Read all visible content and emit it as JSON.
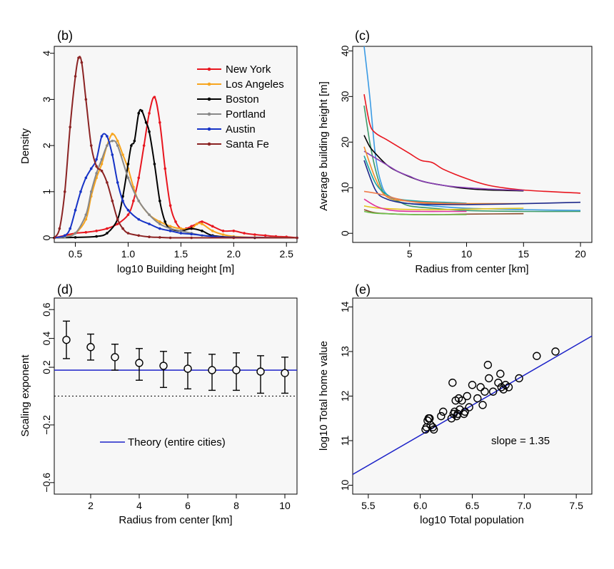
{
  "chart_data": [
    {
      "id": "b",
      "type": "line",
      "panel_label": "(b)",
      "xlabel": "log10 Building height [m]",
      "ylabel": "Density",
      "xlim": [
        0.3,
        2.6
      ],
      "ylim": [
        -0.1,
        4.15
      ],
      "xticks": [
        0.5,
        1.0,
        1.5,
        2.0,
        2.5
      ],
      "xtick_labels": [
        "0.5",
        "1.0",
        "1.5",
        "2.0",
        "2.5"
      ],
      "yticks": [
        0,
        1,
        2,
        3,
        4
      ],
      "ytick_labels": [
        "0",
        "1",
        "2",
        "3",
        "4"
      ],
      "legend_position": "top-right",
      "series": [
        {
          "name": "New York",
          "color": "#e8161f",
          "x": [
            0.3,
            0.4,
            0.5,
            0.6,
            0.7,
            0.8,
            0.9,
            1.0,
            1.05,
            1.1,
            1.15,
            1.2,
            1.25,
            1.3,
            1.35,
            1.4,
            1.45,
            1.5,
            1.55,
            1.6,
            1.65,
            1.7,
            1.8,
            1.9,
            2.0,
            2.1,
            2.2,
            2.3,
            2.4,
            2.5,
            2.6
          ],
          "y": [
            0,
            0.05,
            0.1,
            0.12,
            0.15,
            0.2,
            0.3,
            0.5,
            0.8,
            1.3,
            2.0,
            2.7,
            3.05,
            2.5,
            1.5,
            0.7,
            0.35,
            0.2,
            0.2,
            0.25,
            0.3,
            0.35,
            0.25,
            0.15,
            0.15,
            0.1,
            0.07,
            0.05,
            0.03,
            0.02,
            0
          ]
        },
        {
          "name": "Los Angeles",
          "color": "#f7a51e",
          "x": [
            0.3,
            0.4,
            0.5,
            0.6,
            0.65,
            0.7,
            0.75,
            0.8,
            0.85,
            0.9,
            0.95,
            1.0,
            1.05,
            1.1,
            1.2,
            1.3,
            1.4,
            1.5,
            1.6,
            1.65,
            1.7,
            1.8,
            1.9,
            2.0,
            2.2,
            2.6
          ],
          "y": [
            0,
            0.02,
            0.1,
            0.4,
            0.9,
            1.3,
            1.6,
            2.0,
            2.25,
            2.1,
            1.8,
            1.5,
            1.1,
            0.8,
            0.5,
            0.35,
            0.25,
            0.2,
            0.2,
            0.3,
            0.3,
            0.15,
            0.07,
            0.03,
            0.01,
            0
          ]
        },
        {
          "name": "Boston",
          "color": "#000000",
          "x": [
            0.3,
            0.5,
            0.7,
            0.8,
            0.9,
            0.95,
            1.0,
            1.03,
            1.06,
            1.1,
            1.13,
            1.17,
            1.2,
            1.25,
            1.3,
            1.35,
            1.4,
            1.5,
            1.6,
            1.7,
            1.8,
            2.0,
            2.2,
            2.6
          ],
          "y": [
            0,
            0.01,
            0.03,
            0.1,
            0.4,
            0.9,
            1.6,
            2.0,
            2.1,
            2.7,
            2.75,
            2.5,
            2.3,
            1.6,
            0.8,
            0.35,
            0.2,
            0.15,
            0.2,
            0.15,
            0.05,
            0.01,
            0,
            0
          ]
        },
        {
          "name": "Portland",
          "color": "#888888",
          "x": [
            0.3,
            0.4,
            0.5,
            0.6,
            0.65,
            0.7,
            0.75,
            0.8,
            0.85,
            0.9,
            1.0,
            1.1,
            1.2,
            1.3,
            1.4,
            1.5,
            1.6,
            1.7,
            1.8,
            2.0,
            2.6
          ],
          "y": [
            0,
            0.02,
            0.1,
            0.5,
            1.0,
            1.4,
            1.7,
            2.0,
            2.1,
            2.0,
            1.3,
            0.8,
            0.5,
            0.3,
            0.2,
            0.15,
            0.1,
            0.05,
            0.03,
            0.01,
            0
          ]
        },
        {
          "name": "Austin",
          "color": "#1633c6",
          "x": [
            0.3,
            0.4,
            0.45,
            0.5,
            0.55,
            0.6,
            0.65,
            0.7,
            0.75,
            0.8,
            0.85,
            0.9,
            0.95,
            1.0,
            1.1,
            1.2,
            1.3,
            1.4,
            1.5,
            1.6,
            1.8,
            2.0,
            2.6
          ],
          "y": [
            0,
            0.05,
            0.2,
            0.6,
            1.0,
            1.3,
            1.5,
            1.7,
            2.2,
            2.2,
            1.8,
            1.2,
            0.8,
            0.6,
            0.4,
            0.3,
            0.2,
            0.15,
            0.1,
            0.08,
            0.03,
            0.01,
            0
          ]
        },
        {
          "name": "Santa Fe",
          "color": "#8b2323",
          "x": [
            0.3,
            0.35,
            0.4,
            0.45,
            0.5,
            0.53,
            0.56,
            0.6,
            0.65,
            0.7,
            0.75,
            0.8,
            0.85,
            0.9,
            0.95,
            1.0,
            1.1,
            1.2,
            1.3,
            1.4,
            1.6,
            2.0,
            2.6
          ],
          "y": [
            0,
            0.2,
            1.0,
            2.4,
            3.5,
            3.9,
            3.8,
            3.0,
            2.0,
            1.55,
            1.45,
            1.2,
            0.8,
            0.4,
            0.2,
            0.1,
            0.05,
            0.02,
            0.01,
            0,
            0,
            0,
            0
          ]
        }
      ]
    },
    {
      "id": "c",
      "type": "line",
      "panel_label": "(c)",
      "xlabel": "Radius from center [km]",
      "ylabel": "Average building height [m]",
      "xlim": [
        0,
        21
      ],
      "ylim": [
        -2,
        41
      ],
      "xticks": [
        5,
        10,
        15,
        20
      ],
      "xtick_labels": [
        "5",
        "10",
        "15",
        "20"
      ],
      "yticks": [
        0,
        10,
        20,
        30,
        40
      ],
      "ytick_labels": [
        "0",
        "10",
        "20",
        "30",
        "40"
      ],
      "series": [
        {
          "name": "c-light-blue",
          "color": "#3b9be4",
          "x": [
            1,
            1.5,
            2,
            2.5,
            3,
            4,
            5,
            7,
            10,
            15,
            20
          ],
          "y": [
            41,
            30,
            17,
            11,
            8.5,
            7,
            6.5,
            6,
            5.5,
            5.2,
            5
          ]
        },
        {
          "name": "c-red",
          "color": "#e8161f",
          "x": [
            1,
            1.5,
            2,
            3,
            4,
            5,
            6,
            7,
            8,
            10,
            12,
            15,
            20
          ],
          "y": [
            30.5,
            24,
            22,
            20.5,
            19,
            17.5,
            16,
            15.5,
            14,
            12,
            10.5,
            9.5,
            8.8
          ]
        },
        {
          "name": "c-green",
          "color": "#3c9a6a",
          "x": [
            1,
            1.5,
            2,
            2.5,
            3,
            4,
            5,
            7,
            10,
            15,
            20
          ],
          "y": [
            28,
            20,
            14,
            10,
            8,
            7,
            6,
            5.5,
            5,
            4.8,
            4.8
          ]
        },
        {
          "name": "c-black",
          "color": "#000000",
          "x": [
            1,
            1.5,
            2,
            3,
            4,
            6,
            8,
            10,
            12,
            15
          ],
          "y": [
            21.5,
            19,
            17.5,
            15,
            13.5,
            11.5,
            10.5,
            9.8,
            9.5,
            9.3
          ]
        },
        {
          "name": "c-purple",
          "color": "#8a3fb5",
          "x": [
            1,
            2,
            3,
            4,
            5,
            6,
            8,
            10,
            12,
            15
          ],
          "y": [
            18,
            16.5,
            15,
            13.5,
            12.5,
            11.5,
            10.5,
            10,
            9.7,
            9.4
          ]
        },
        {
          "name": "c-orange",
          "color": "#f28e2c",
          "x": [
            1,
            2,
            3,
            5,
            7,
            10,
            15
          ],
          "y": [
            19,
            12,
            8,
            7,
            6.5,
            6.5,
            6.5
          ]
        },
        {
          "name": "c-teal",
          "color": "#17a3a3",
          "x": [
            1,
            2,
            3,
            4,
            6,
            8,
            10
          ],
          "y": [
            17,
            11,
            8.5,
            7.5,
            7,
            6.8,
            6.6
          ]
        },
        {
          "name": "c-navy",
          "color": "#1f2a8a",
          "x": [
            1,
            2,
            3,
            5,
            8,
            10,
            15,
            20
          ],
          "y": [
            16,
            9.5,
            7.5,
            6.5,
            6.3,
            6.3,
            6.5,
            6.8
          ]
        },
        {
          "name": "c-salmon",
          "color": "#f07a4a",
          "x": [
            1,
            2,
            3,
            4,
            5,
            6,
            7,
            8,
            10
          ],
          "y": [
            9.2,
            8.8,
            8.2,
            7.5,
            7,
            6.8,
            6.7,
            6.6,
            6.5
          ]
        },
        {
          "name": "c-yellow",
          "color": "#e5c21a",
          "x": [
            1,
            2,
            4,
            6,
            8,
            10,
            15
          ],
          "y": [
            6,
            5.6,
            5.3,
            5.2,
            5.2,
            5.3,
            5.5
          ]
        },
        {
          "name": "c-magenta",
          "color": "#e0309a",
          "x": [
            1,
            2,
            3,
            4,
            6,
            8,
            10
          ],
          "y": [
            7.5,
            6,
            5.2,
            4.9,
            4.8,
            4.8,
            4.8
          ]
        },
        {
          "name": "c-brown",
          "color": "#8b4b2b",
          "x": [
            1,
            2,
            4,
            6,
            8,
            10,
            15
          ],
          "y": [
            5.2,
            4.5,
            4.2,
            4.1,
            4.1,
            4.2,
            4.3
          ]
        },
        {
          "name": "c-lime",
          "color": "#6cc04a",
          "x": [
            1,
            2,
            4,
            6,
            8,
            10
          ],
          "y": [
            4.8,
            4.4,
            4.2,
            4.1,
            4.1,
            4.1
          ]
        }
      ]
    },
    {
      "id": "d",
      "type": "scatter",
      "panel_label": "(d)",
      "xlabel": "Radius from center [km]",
      "ylabel": "Scaling exponent",
      "xlim": [
        0.5,
        10.5
      ],
      "ylim": [
        -0.68,
        0.68
      ],
      "xticks": [
        2,
        4,
        6,
        8,
        10
      ],
      "xtick_labels": [
        "2",
        "4",
        "6",
        "8",
        "10"
      ],
      "yticks": [
        -0.6,
        -0.2,
        0.2,
        0.4,
        0.6
      ],
      "ytick_labels": [
        "−0.6",
        "−0.2",
        "0.2",
        "0.4",
        "0.6"
      ],
      "x": [
        1,
        2,
        3,
        4,
        5,
        6,
        7,
        8,
        9,
        10
      ],
      "y": [
        0.39,
        0.34,
        0.27,
        0.23,
        0.21,
        0.19,
        0.18,
        0.18,
        0.17,
        0.16
      ],
      "err_low": [
        0.26,
        0.25,
        0.18,
        0.11,
        0.06,
        0.05,
        0.04,
        0.04,
        0.02,
        0.02
      ],
      "err_high": [
        0.52,
        0.43,
        0.36,
        0.33,
        0.31,
        0.3,
        0.29,
        0.3,
        0.28,
        0.27
      ],
      "theory_value": 0.18,
      "zero_line": 0,
      "legend_label": "Theory (entire cities)",
      "theory_color": "#1c22c8"
    },
    {
      "id": "e",
      "type": "scatter",
      "panel_label": "(e)",
      "xlabel": "log10 Total population",
      "ylabel": "log10 Total home value",
      "xlim": [
        5.35,
        7.65
      ],
      "ylim": [
        9.8,
        14.2
      ],
      "xticks": [
        5.5,
        6.0,
        6.5,
        7.0,
        7.5
      ],
      "xtick_labels": [
        "5.5",
        "6.0",
        "6.5",
        "7.0",
        "7.5"
      ],
      "yticks": [
        10,
        11,
        12,
        13,
        14
      ],
      "ytick_labels": [
        "10",
        "11",
        "12",
        "13",
        "14"
      ],
      "x": [
        6.05,
        6.06,
        6.08,
        6.1,
        6.12,
        6.13,
        6.07,
        6.09,
        6.2,
        6.22,
        6.3,
        6.32,
        6.33,
        6.35,
        6.36,
        6.38,
        6.4,
        6.31,
        6.34,
        6.37,
        6.42,
        6.43,
        6.45,
        6.47,
        6.5,
        6.55,
        6.58,
        6.6,
        6.62,
        6.65,
        6.66,
        6.7,
        6.75,
        6.77,
        6.78,
        6.8,
        6.82,
        6.85,
        6.95,
        7.12,
        7.3
      ],
      "y": [
        11.25,
        11.3,
        11.5,
        11.35,
        11.3,
        11.25,
        11.45,
        11.5,
        11.55,
        11.65,
        11.5,
        11.6,
        11.65,
        11.55,
        11.6,
        11.7,
        11.9,
        12.3,
        11.9,
        11.95,
        11.6,
        11.65,
        12.0,
        11.75,
        12.25,
        11.95,
        12.2,
        11.8,
        12.1,
        12.7,
        12.4,
        12.1,
        12.3,
        12.5,
        12.2,
        12.15,
        12.25,
        12.2,
        12.4,
        12.9,
        13.0
      ],
      "fit_slope": 1.35,
      "fit_intercept": 3.02,
      "annotation": "slope = 1.35",
      "fit_color": "#1c22c8"
    }
  ]
}
